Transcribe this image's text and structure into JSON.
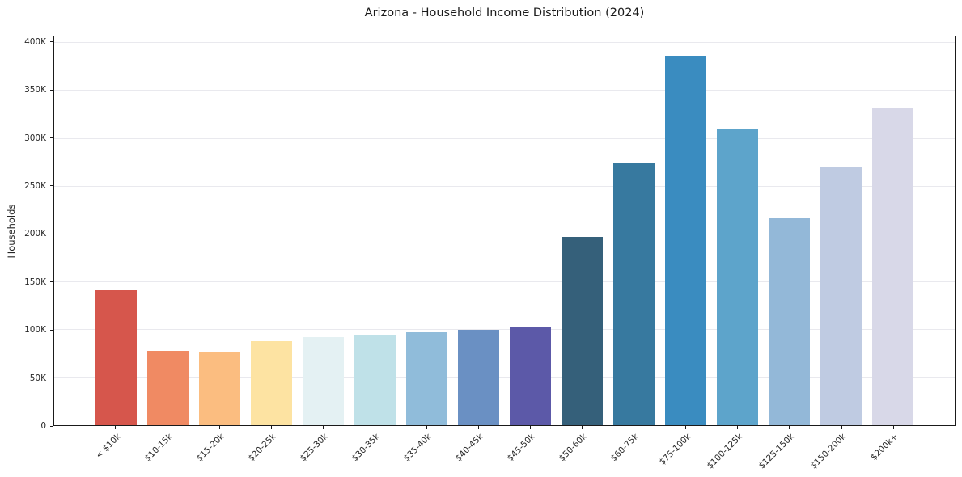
{
  "header": {
    "title": "Arizona - Household Income Distribution (2024)"
  },
  "chart_data": {
    "type": "bar",
    "title": "Arizona - Household Income Distribution (2024)",
    "xlabel": "",
    "ylabel": "Households",
    "categories": [
      "< $10k",
      "$10-15k",
      "$15-20k",
      "$20-25k",
      "$25-30k",
      "$30-35k",
      "$35-40k",
      "$40-45k",
      "$45-50k",
      "$50-60k",
      "$60-75k",
      "$75-100k",
      "$100-125k",
      "$125-150k",
      "$150-200k",
      "$200k+"
    ],
    "values": [
      141000,
      78000,
      76000,
      88000,
      92000,
      95000,
      97000,
      100000,
      102000,
      197000,
      275000,
      386000,
      309000,
      216000,
      270000,
      331000
    ],
    "bar_colors": [
      "#d6564c",
      "#f08a63",
      "#fbbd80",
      "#fde3a2",
      "#e4f1f3",
      "#bfe1e8",
      "#90bcda",
      "#6a90c3",
      "#5c59a8",
      "#35607a",
      "#37799f",
      "#3a8cc0",
      "#5da4cb",
      "#93b8d8",
      "#bfcbe2",
      "#d8d8e8"
    ],
    "ylim": [
      0,
      400000
    ],
    "yticks": [
      0,
      50000,
      100000,
      150000,
      200000,
      250000,
      300000,
      350000,
      400000
    ],
    "ytick_labels": [
      "0",
      "50K",
      "100K",
      "150K",
      "200K",
      "250K",
      "300K",
      "350K",
      "400K"
    ],
    "grid": "horizontal",
    "legend_position": "none",
    "colors": {
      "background": "#ffffff",
      "gridline": "#e9e9ee",
      "spine": "#1a1a1a",
      "text": "#262626"
    }
  }
}
